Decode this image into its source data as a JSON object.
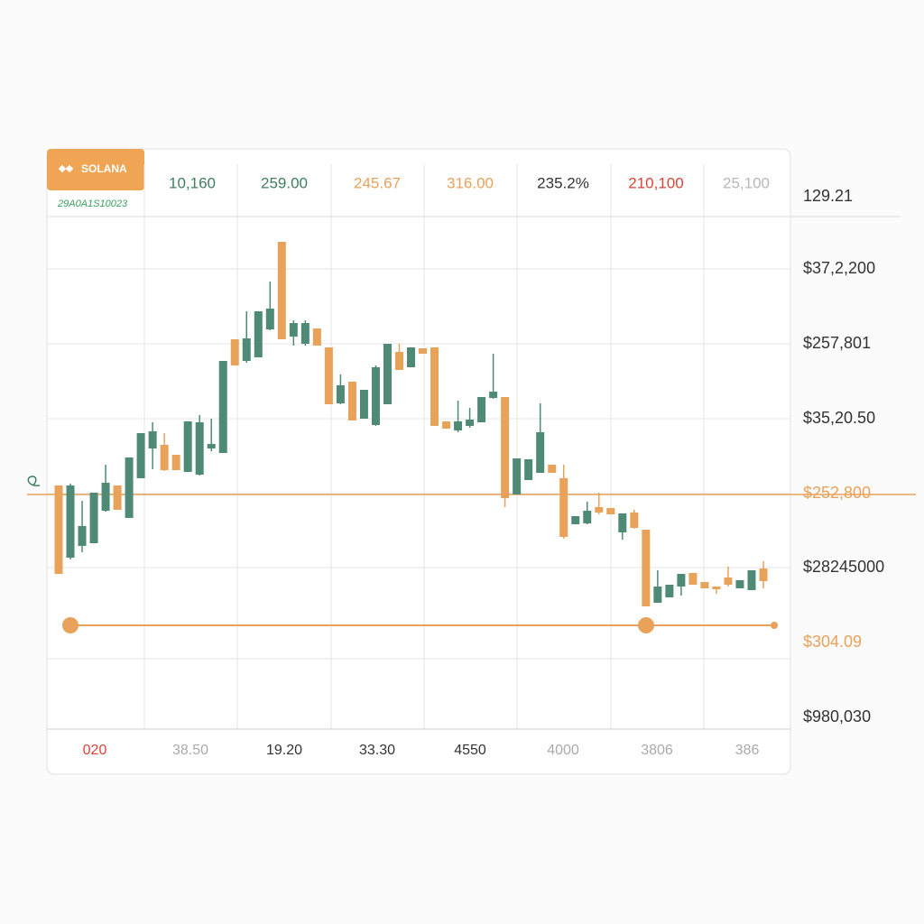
{
  "chart_data": {
    "type": "candlestick",
    "symbol": "SOLANA",
    "subtitle": "29A0A1S10023",
    "header": [
      {
        "text": "10,160",
        "color": "#3f7f5f"
      },
      {
        "text": "259.00",
        "color": "#3f7f5f"
      },
      {
        "text": "245.67",
        "color": "#e9a25a"
      },
      {
        "text": "316.00",
        "color": "#e9a25a"
      },
      {
        "text": "235.2%",
        "color": "#333333"
      },
      {
        "text": "210,100",
        "color": "#d9443a"
      },
      {
        "text": "25,100",
        "color": "#b8b8b8"
      }
    ],
    "right_labels": [
      {
        "text": "129.21",
        "color": "#333333"
      },
      {
        "text": "$37,2,200",
        "color": "#333333"
      },
      {
        "text": "$257,801",
        "color": "#333333"
      },
      {
        "text": "$35,20.50",
        "color": "#333333"
      },
      {
        "text": "$252,800",
        "color": "#e9a25a"
      },
      {
        "text": "$28245000",
        "color": "#333333"
      },
      {
        "text": "$304.09",
        "color": "#e9a25a"
      },
      {
        "text": "$980,030",
        "color": "#333333"
      }
    ],
    "x_labels": [
      {
        "text": "020",
        "color": "#d9443a"
      },
      {
        "text": "38.50",
        "color": "#aaaaaa"
      },
      {
        "text": "19.20",
        "color": "#333333"
      },
      {
        "text": "33.30",
        "color": "#333333"
      },
      {
        "text": "4550",
        "color": "#333333"
      },
      {
        "text": "4000",
        "color": "#aaaaaa"
      },
      {
        "text": "3806",
        "color": "#aaaaaa"
      },
      {
        "text": "386",
        "color": "#aaaaaa"
      }
    ],
    "ylim": [
      0,
      568
    ],
    "up_color": "#4e8a76",
    "down_color": "#e9a25a",
    "reference_lines": [
      260,
      115
    ],
    "reference_color": "#e9a25a",
    "open": [
      270,
      190,
      203,
      206,
      242,
      270,
      234,
      278,
      311,
      315,
      304,
      285,
      282,
      311,
      306,
      432,
      408,
      412,
      443,
      540,
      435,
      427,
      444,
      423,
      361,
      385,
      344,
      337,
      360,
      418,
      401,
      422,
      423,
      341,
      331,
      336,
      340,
      367,
      368,
      260,
      276,
      284,
      293,
      278,
      227,
      228,
      246,
      245,
      218,
      240,
      221,
      140,
      146,
      158,
      173,
      163,
      158,
      168,
      156,
      154,
      178
    ],
    "high": [
      270,
      272,
      253,
      262,
      293,
      270,
      301,
      328,
      340,
      328,
      304,
      341,
      348,
      344,
      408,
      432,
      463,
      463,
      496,
      540,
      453,
      453,
      444,
      423,
      393,
      385,
      376,
      403,
      427,
      427,
      423,
      422,
      423,
      341,
      364,
      356,
      368,
      416,
      368,
      300,
      299,
      361,
      293,
      293,
      236,
      252,
      262,
      245,
      239,
      243,
      221,
      176,
      160,
      172,
      173,
      163,
      158,
      180,
      165,
      176,
      186
    ],
    "low": [
      172,
      188,
      196,
      206,
      241,
      243,
      234,
      278,
      288,
      286,
      287,
      285,
      281,
      308,
      306,
      403,
      406,
      412,
      442,
      432,
      425,
      425,
      425,
      360,
      360,
      342,
      344,
      336,
      360,
      398,
      401,
      416,
      336,
      333,
      329,
      334,
      340,
      366,
      246,
      260,
      276,
      284,
      284,
      211,
      227,
      227,
      238,
      238,
      210,
      222,
      136,
      140,
      146,
      148,
      160,
      156,
      150,
      158,
      156,
      154,
      156
    ],
    "close": [
      172,
      270,
      225,
      262,
      273,
      243,
      301,
      328,
      330,
      287,
      287,
      341,
      340,
      316,
      408,
      403,
      433,
      463,
      466,
      432,
      450,
      450,
      425,
      360,
      381,
      342,
      376,
      401,
      427,
      398,
      423,
      416,
      336,
      333,
      341,
      343,
      368,
      374,
      256,
      300,
      299,
      329,
      284,
      213,
      236,
      242,
      240,
      238,
      239,
      223,
      136,
      158,
      160,
      172,
      160,
      156,
      155,
      160,
      165,
      176,
      164
    ]
  }
}
